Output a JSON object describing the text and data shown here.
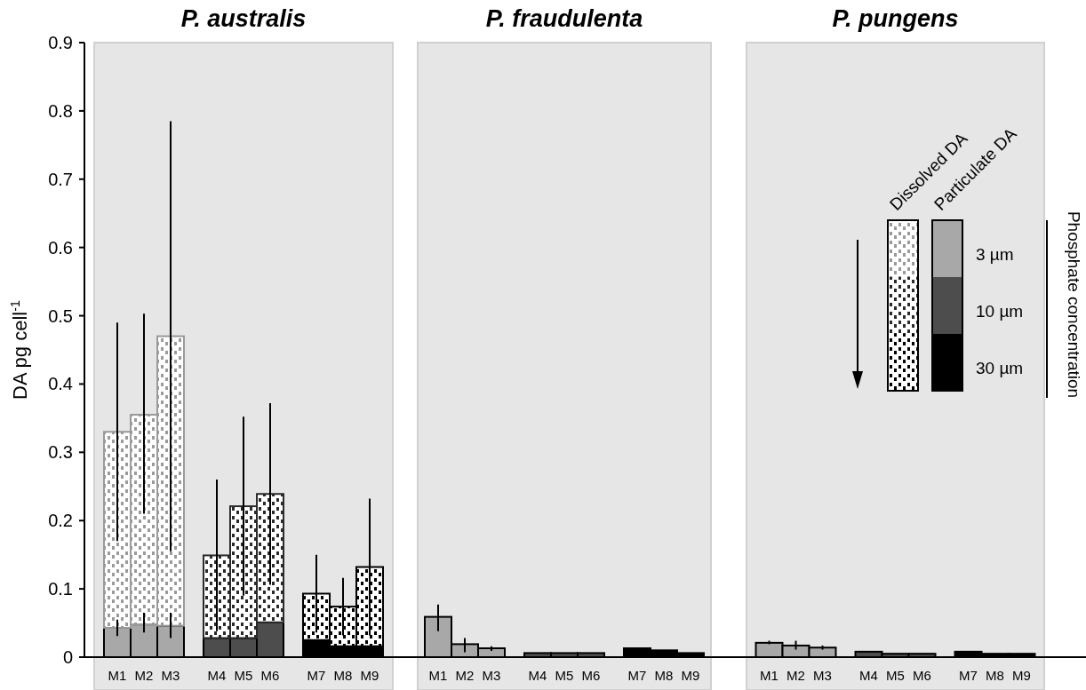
{
  "chart_data": [
    {
      "type": "bar",
      "title": "P. australis",
      "ylabel": "DA pg cell$^{-1}$",
      "categories": [
        "M1",
        "M2",
        "M3",
        "M4",
        "M5",
        "M6",
        "M7",
        "M8",
        "M9"
      ],
      "stacked": true,
      "ylim": [
        0,
        0.9
      ],
      "yticks": [
        0,
        0.1,
        0.2,
        0.3,
        0.4,
        0.5,
        0.6,
        0.7,
        0.8,
        0.9
      ],
      "series": [
        {
          "colors": [
            "#a8a8a8",
            "#a8a8a8",
            "#a8a8a8",
            "#4d4d4d",
            "#4d4d4d",
            "#4d4d4d",
            "#000000",
            "#000000",
            "#000000"
          ],
          "values": [
            0.043,
            0.048,
            0.046,
            0.028,
            0.028,
            0.051,
            0.025,
            0.016,
            0.016
          ],
          "errors": [
            [
              0.031,
              0.055
            ],
            [
              0.036,
              0.065
            ],
            [
              0.028,
              0.065
            ],
            null,
            null,
            null,
            null,
            null,
            null
          ]
        },
        {
          "colors": [
            "#9a9a9a",
            "#9a9a9a",
            "#9a9a9a",
            "#2a2a2a",
            "#2a2a2a",
            "#2a2a2a",
            "#000000",
            "#000000",
            "#000000"
          ],
          "values": [
            0.287,
            0.307,
            0.424,
            0.121,
            0.193,
            0.188,
            0.068,
            0.058,
            0.116
          ],
          "errors": [
            [
              0.17,
              0.49
            ],
            [
              0.21,
              0.503
            ],
            [
              0.155,
              0.785
            ],
            [
              0.038,
              0.26
            ],
            [
              0.09,
              0.352
            ],
            [
              0.106,
              0.372
            ],
            [
              0.036,
              0.15
            ],
            [
              0.032,
              0.116
            ],
            [
              0.032,
              0.232
            ]
          ]
        }
      ]
    },
    {
      "type": "bar",
      "title": "P. fraudulenta",
      "categories": [
        "M1",
        "M2",
        "M3",
        "M4",
        "M5",
        "M6",
        "M7",
        "M8",
        "M9"
      ],
      "stacked": true,
      "ylim": [
        0,
        0.9
      ],
      "tick_labels": "x",
      "series": [
        {
          "colors": [
            "#a8a8a8",
            "#a8a8a8",
            "#a8a8a8",
            "#4d4d4d",
            "#4d4d4d",
            "#4d4d4d",
            "#000000",
            "#000000",
            "#000000"
          ],
          "values": [
            0.059,
            0.019,
            0.013,
            0.006,
            0.006,
            0.006,
            0.013,
            0.01,
            0.006
          ],
          "errors": [
            [
              0.038,
              0.077
            ],
            [
              0.007,
              0.028
            ],
            [
              0.009,
              0.016
            ],
            null,
            null,
            null,
            null,
            null,
            null
          ]
        }
      ]
    },
    {
      "type": "bar",
      "title": "P. pungens",
      "categories": [
        "M1",
        "M2",
        "M3",
        "M4",
        "M5",
        "M6",
        "M7",
        "M8",
        "M9"
      ],
      "stacked": true,
      "ylim": [
        0,
        0.9
      ],
      "tick_labels": "x",
      "legend": "right",
      "annotations": [
        "3 µm",
        "10 µm",
        "30 µm",
        "Phosphate concentration"
      ],
      "series": [
        {
          "name": "Particulate DA",
          "colors": [
            "#a8a8a8",
            "#a8a8a8",
            "#a8a8a8",
            "#4d4d4d",
            "#4d4d4d",
            "#4d4d4d",
            "#000000",
            "#000000",
            "#000000"
          ],
          "values": [
            0.021,
            0.017,
            0.014,
            0.008,
            0.005,
            0.005,
            0.008,
            0.005,
            0.005
          ],
          "errors": [
            [
              0.019,
              0.024
            ],
            [
              0.011,
              0.024
            ],
            [
              0.011,
              0.017
            ],
            null,
            null,
            null,
            null,
            null,
            null
          ]
        },
        {
          "name": "Dissolved DA",
          "colors": [
            "#9a9a9a",
            "#9a9a9a",
            "#9a9a9a",
            "#2a2a2a",
            "#2a2a2a",
            "#2a2a2a",
            "#000000",
            "#000000",
            "#000000"
          ],
          "values": [
            0,
            0,
            0,
            0,
            0,
            0,
            0,
            0,
            0
          ]
        }
      ]
    }
  ]
}
